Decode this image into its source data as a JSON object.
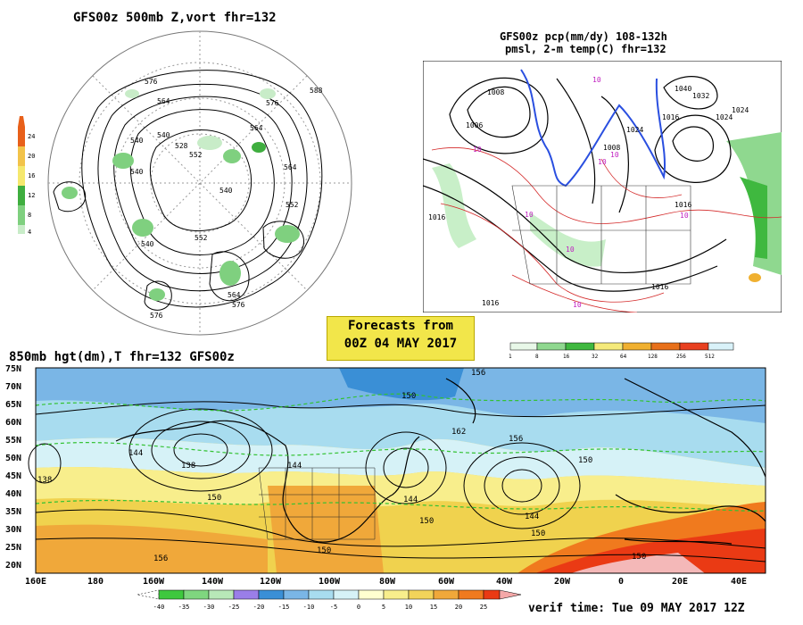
{
  "panel_500mb": {
    "title": "GFS00z   500mb Z,vort    fhr=132",
    "colorbar_ticks": [
      "24",
      "20",
      "16",
      "12",
      "8",
      "4"
    ],
    "colorbar_colors": [
      "#e8601a",
      "#f2c34a",
      "#f5e86e",
      "#3fae3f",
      "#7fd07f",
      "#c8ecc8"
    ],
    "contour_labels": [
      "576",
      "564",
      "588",
      "576",
      "564",
      "540",
      "540",
      "540",
      "552",
      "528",
      "540",
      "564",
      "552",
      "552",
      "540",
      "564",
      "576",
      "576"
    ]
  },
  "panel_pcp": {
    "title_line1": "GFS00z pcp(mm/dy) 108-132h",
    "title_line2": "pmsl, 2-m temp(C)   fhr=132",
    "contour_labels": [
      "1008",
      "1006",
      "1040",
      "1032",
      "1024",
      "1016",
      "1024",
      "1016",
      "1008",
      "1016",
      "1024",
      "1016",
      "1016"
    ],
    "temp_labels": [
      "10",
      "10",
      "10",
      "10",
      "10",
      "10",
      "10",
      "10"
    ],
    "colorbar_ticks": [
      "1",
      "8",
      "16",
      "32",
      "64",
      "128",
      "256",
      "512"
    ],
    "colorbar_colors": [
      "#e8f8e8",
      "#8fd88f",
      "#3fb83f",
      "#f5ea7a",
      "#f0b030",
      "#e8701a",
      "#e84020",
      "#d9f2f9"
    ]
  },
  "banner": {
    "line1": "Forecasts from",
    "line2": "00Z 04 MAY 2017"
  },
  "panel_850mb": {
    "title": "850mb hgt(dm),T   fhr=132 GFS00z",
    "lat_labels": [
      "75N",
      "70N",
      "65N",
      "60N",
      "55N",
      "50N",
      "45N",
      "40N",
      "35N",
      "30N",
      "25N",
      "20N"
    ],
    "lon_labels": [
      "160E",
      "180",
      "160W",
      "140W",
      "120W",
      "100W",
      "80W",
      "60W",
      "40W",
      "20W",
      "0",
      "20E",
      "40E"
    ],
    "contour_labels": [
      "144",
      "138",
      "138",
      "150",
      "144",
      "150",
      "156",
      "162",
      "156",
      "150",
      "144",
      "150",
      "144",
      "150",
      "150",
      "150",
      "156"
    ],
    "colorbar_ticks": [
      "-40",
      "-35",
      "-30",
      "-25",
      "-20",
      "-15",
      "-10",
      "-5",
      "0",
      "5",
      "10",
      "15",
      "20",
      "25"
    ],
    "colorbar_colors": [
      "#3ec83e",
      "#7fd67f",
      "#b8e8b8",
      "#9a7ee8",
      "#3a8fd6",
      "#7ab6e6",
      "#a8dcef",
      "#d6f2f7",
      "#ffffd0",
      "#f8ee8c",
      "#f2d35a",
      "#f0a83a",
      "#f07a1e",
      "#ea3a14"
    ]
  },
  "verif_time": "verif time: Tue 09 MAY 2017 12Z"
}
